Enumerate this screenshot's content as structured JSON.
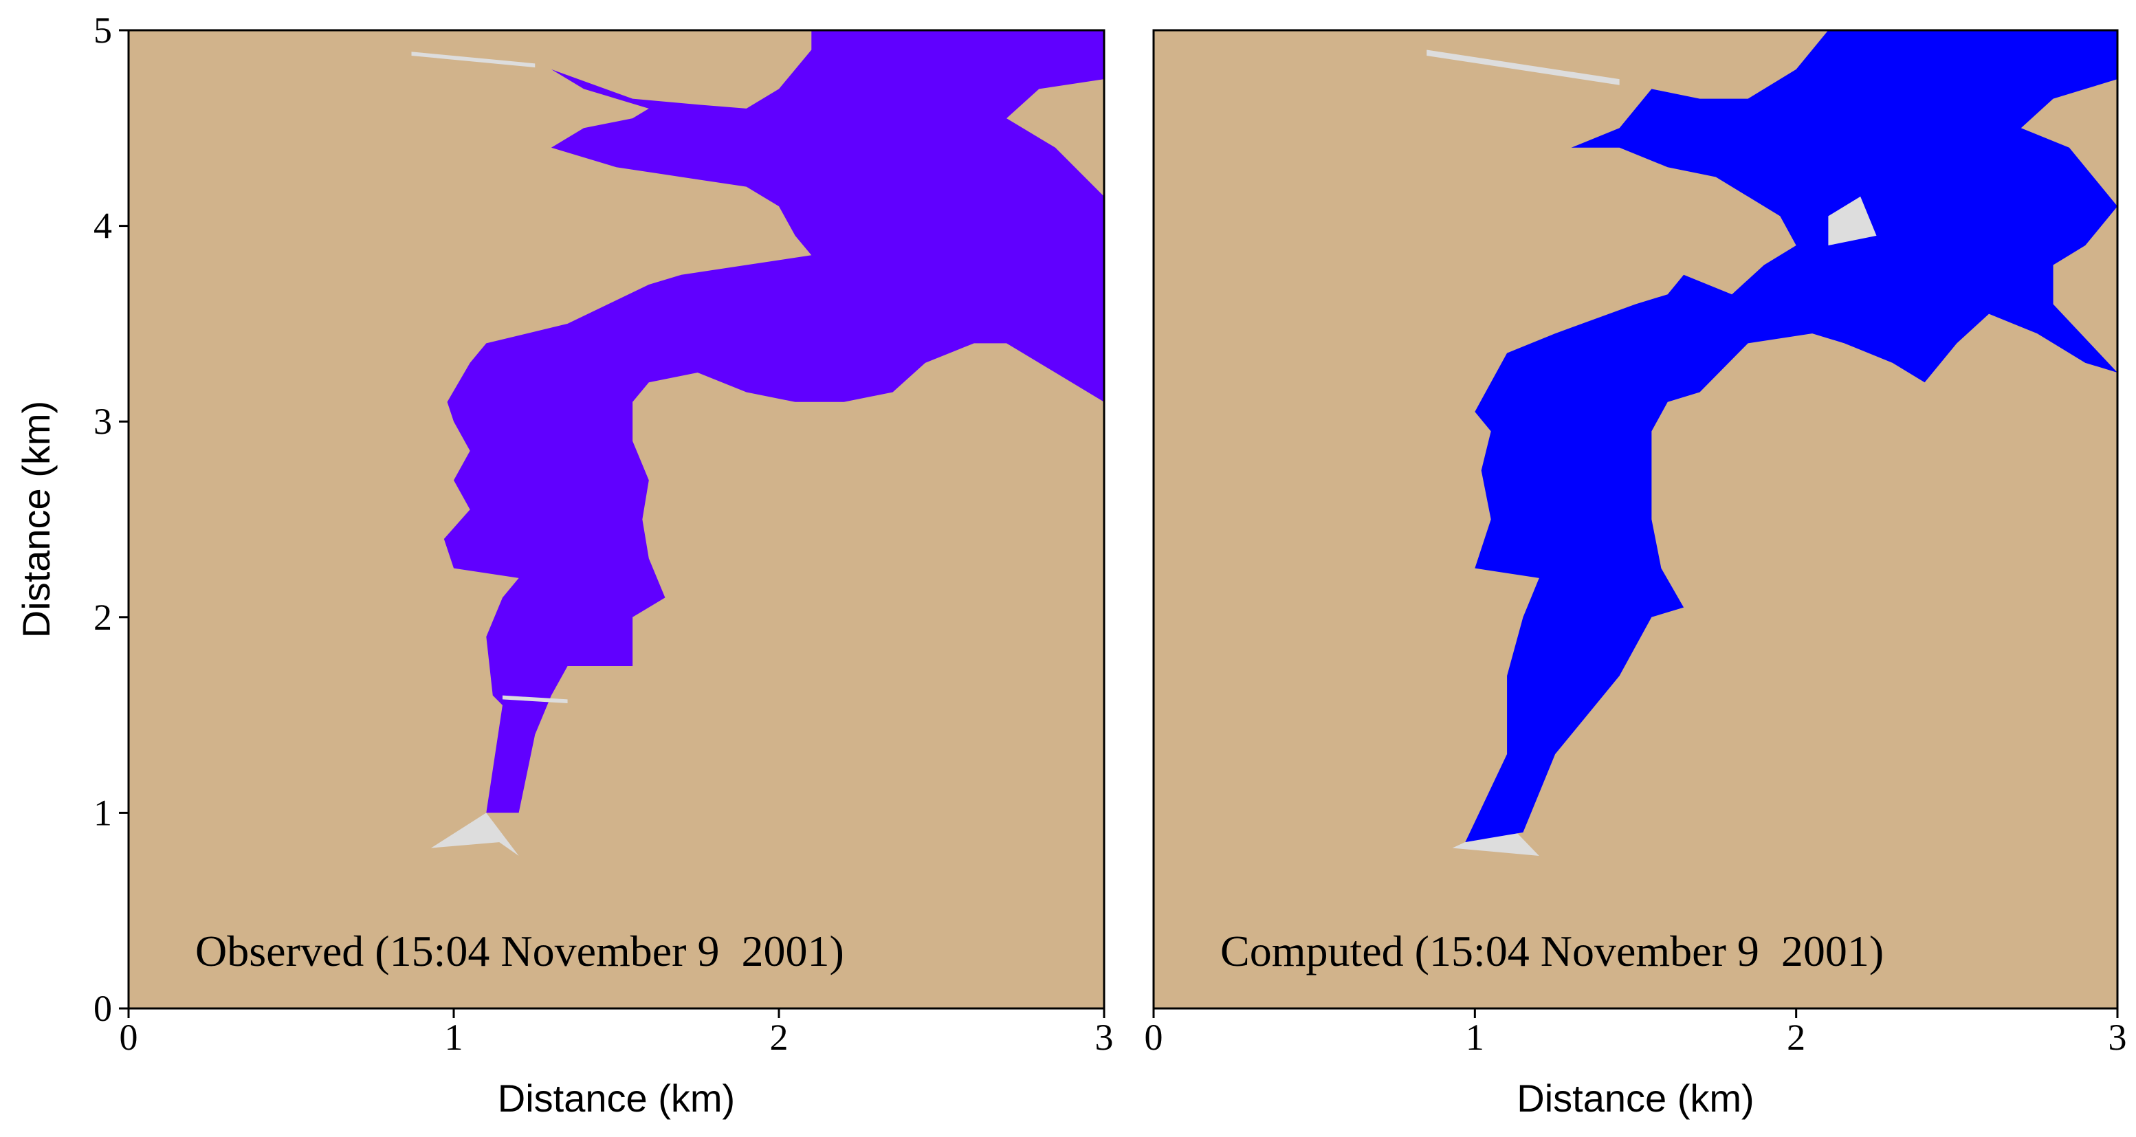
{
  "panels": [
    {
      "caption": "Observed (15:04 November 9  2001)",
      "xlabel": "Distance (km)",
      "ylabel": "Distance (km)",
      "xlim": [
        0,
        3
      ],
      "ylim": [
        0,
        5
      ],
      "xticks": [
        0,
        1,
        2,
        3
      ],
      "yticks": [
        0,
        1,
        2,
        3,
        4,
        5
      ]
    },
    {
      "caption": "Computed (15:04 November 9  2001)",
      "xlabel": "Distance (km)",
      "xlim": [
        0,
        3
      ],
      "ylim": [
        0,
        5
      ],
      "xticks": [
        0,
        1,
        2,
        3
      ]
    }
  ]
}
